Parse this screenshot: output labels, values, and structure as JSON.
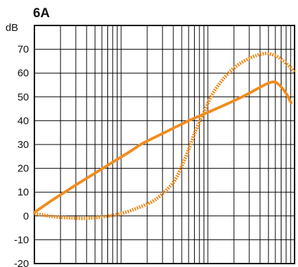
{
  "chart_data": {
    "type": "line",
    "title": "6A",
    "ylabel": "dB",
    "xlabel": "",
    "x_scale": "log",
    "x_range_decades": [
      0,
      3
    ],
    "ylim": [
      -20,
      80
    ],
    "yticks": [
      70,
      60,
      50,
      40,
      30,
      20,
      10,
      0,
      -10,
      -20
    ],
    "ytick_labels": [
      "70",
      "60",
      "50",
      "40",
      "30",
      "20",
      "10",
      "0",
      "-10",
      "-20"
    ],
    "grid": true,
    "legend": "none",
    "series": [
      {
        "style": "solid",
        "color": "#f08c1e",
        "points": [
          [
            0.0,
            1.5
          ],
          [
            0.1,
            4.0
          ],
          [
            0.2,
            6.5
          ],
          [
            0.35,
            10.0
          ],
          [
            0.5,
            13.5
          ],
          [
            0.7,
            18.0
          ],
          [
            0.9,
            22.5
          ],
          [
            1.1,
            27.0
          ],
          [
            1.25,
            30.5
          ],
          [
            1.5,
            35.0
          ],
          [
            1.75,
            39.5
          ],
          [
            2.0,
            43.5
          ],
          [
            2.25,
            47.5
          ],
          [
            2.45,
            51.0
          ],
          [
            2.6,
            54.0
          ],
          [
            2.7,
            55.8
          ],
          [
            2.78,
            56.2
          ],
          [
            2.85,
            54.0
          ],
          [
            2.91,
            51.0
          ],
          [
            2.96,
            47.5
          ]
        ]
      },
      {
        "style": "dotted",
        "color": "#f08c1e",
        "points": [
          [
            0.0,
            1.0
          ],
          [
            0.2,
            -0.2
          ],
          [
            0.4,
            -0.8
          ],
          [
            0.6,
            -1.0
          ],
          [
            0.8,
            -0.3
          ],
          [
            1.0,
            1.0
          ],
          [
            1.2,
            3.5
          ],
          [
            1.4,
            7.0
          ],
          [
            1.6,
            14.0
          ],
          [
            1.7,
            21.0
          ],
          [
            1.78,
            28.0
          ],
          [
            1.85,
            35.0
          ],
          [
            1.95,
            43.0
          ],
          [
            2.05,
            51.0
          ],
          [
            2.2,
            58.5
          ],
          [
            2.35,
            63.5
          ],
          [
            2.5,
            66.5
          ],
          [
            2.62,
            68.0
          ],
          [
            2.72,
            68.0
          ],
          [
            2.82,
            66.5
          ],
          [
            2.92,
            63.5
          ],
          [
            3.0,
            60.5
          ]
        ]
      }
    ]
  }
}
